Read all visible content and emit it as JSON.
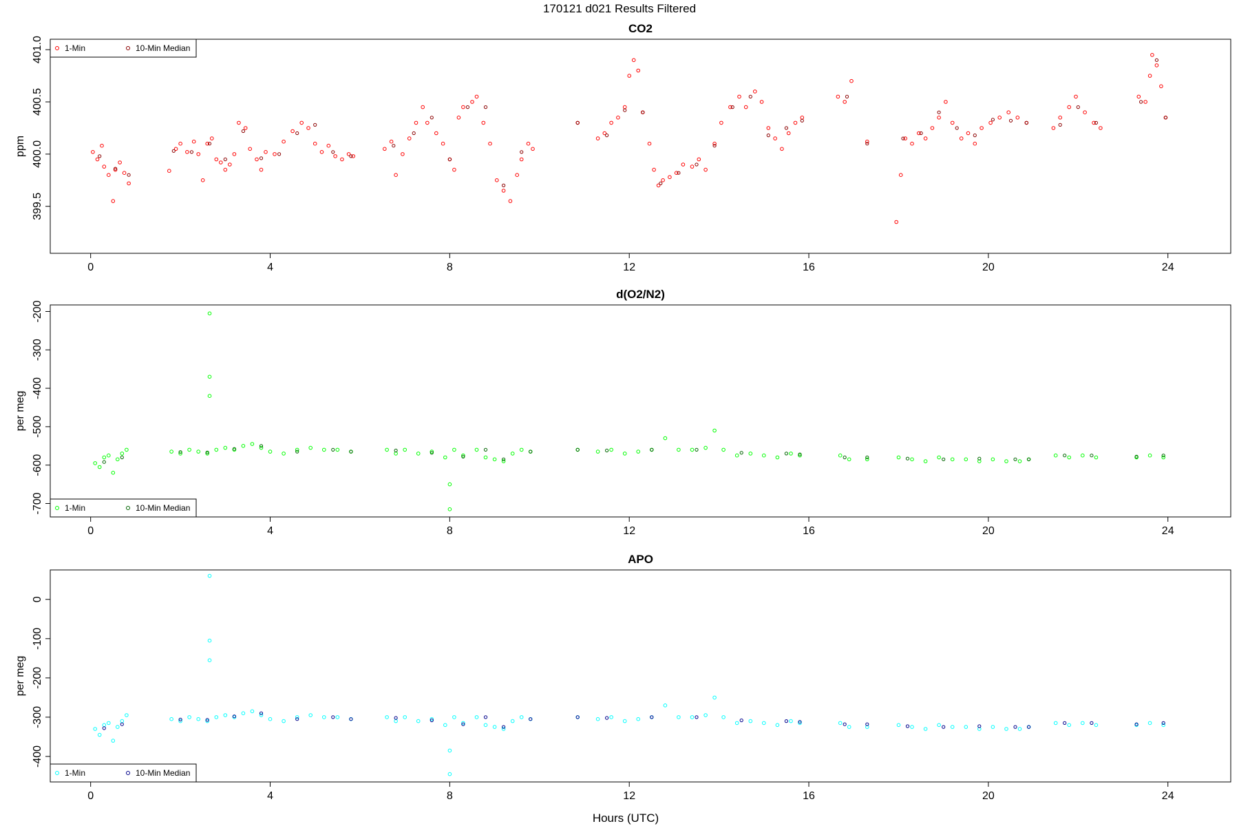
{
  "figure": {
    "title": "170121   d021   Results Filtered",
    "xlabel": "Hours (UTC)"
  },
  "chart_data": [
    {
      "type": "scatter",
      "title": "CO2",
      "ylabel": "ppm",
      "xlim": [
        -0.9,
        25.4
      ],
      "ylim": [
        399.05,
        401.1
      ],
      "xticks": [
        0,
        4,
        8,
        12,
        16,
        20,
        24
      ],
      "yticks": [
        399.5,
        400.0,
        400.5,
        401.0
      ],
      "ytick_labels": [
        "399.5",
        "400.0",
        "400.5",
        "401.0"
      ],
      "legend": {
        "placement": "top-left",
        "entries": [
          "1-Min",
          "10-Min Median"
        ]
      },
      "colors": {
        "one_min": "#ff0000",
        "median": "#8b0000"
      },
      "series": [
        {
          "name": "1-Min",
          "x": [
            0.05,
            0.15,
            0.25,
            0.3,
            0.4,
            0.5,
            0.55,
            0.65,
            0.75,
            0.85,
            1.75,
            1.9,
            2.0,
            2.15,
            2.3,
            2.4,
            2.5,
            2.6,
            2.7,
            2.8,
            2.9,
            3.0,
            3.1,
            3.2,
            3.3,
            3.45,
            3.55,
            3.7,
            3.8,
            3.9,
            4.1,
            4.3,
            4.5,
            4.7,
            4.85,
            5.0,
            5.15,
            5.3,
            5.45,
            5.6,
            5.75,
            5.85,
            6.55,
            6.7,
            6.8,
            6.95,
            7.1,
            7.25,
            7.4,
            7.5,
            7.7,
            7.85,
            8.0,
            8.1,
            8.2,
            8.3,
            8.5,
            8.6,
            8.75,
            8.9,
            9.05,
            9.2,
            9.35,
            9.5,
            9.6,
            9.75,
            9.85,
            10.85,
            11.3,
            11.45,
            11.6,
            11.75,
            11.9,
            12.0,
            12.1,
            12.2,
            12.3,
            12.45,
            12.55,
            12.65,
            12.75,
            12.9,
            13.05,
            13.2,
            13.4,
            13.55,
            13.7,
            13.9,
            14.05,
            14.25,
            14.45,
            14.6,
            14.8,
            14.95,
            15.1,
            15.25,
            15.4,
            15.55,
            15.7,
            15.85,
            16.65,
            16.8,
            16.95,
            17.3,
            17.95,
            18.05,
            18.15,
            18.3,
            18.45,
            18.6,
            18.75,
            18.9,
            19.05,
            19.2,
            19.4,
            19.55,
            19.7,
            19.85,
            20.05,
            20.25,
            20.45,
            20.65,
            20.85,
            21.45,
            21.6,
            21.8,
            21.95,
            22.15,
            22.35,
            22.5,
            23.35,
            23.5,
            23.6,
            23.65,
            23.75,
            23.85,
            23.95
          ],
          "y": [
            400.02,
            399.95,
            400.08,
            399.88,
            399.8,
            399.55,
            399.85,
            399.92,
            399.82,
            399.72,
            399.84,
            400.05,
            400.1,
            400.02,
            400.12,
            400.0,
            399.75,
            400.1,
            400.15,
            399.95,
            399.92,
            399.85,
            399.9,
            400.0,
            400.3,
            400.25,
            400.05,
            399.95,
            399.85,
            400.02,
            400.0,
            400.12,
            400.22,
            400.3,
            400.25,
            400.1,
            400.02,
            400.08,
            399.98,
            399.95,
            400.0,
            399.98,
            400.05,
            400.12,
            399.8,
            400.0,
            400.15,
            400.3,
            400.45,
            400.3,
            400.2,
            400.1,
            399.95,
            399.85,
            400.35,
            400.45,
            400.5,
            400.55,
            400.3,
            400.1,
            399.75,
            399.65,
            399.55,
            399.8,
            399.95,
            400.1,
            400.05,
            400.3,
            400.15,
            400.2,
            400.3,
            400.35,
            400.45,
            400.75,
            400.9,
            400.8,
            400.4,
            400.1,
            399.85,
            399.7,
            399.75,
            399.78,
            399.82,
            399.9,
            399.88,
            399.95,
            399.85,
            400.1,
            400.3,
            400.45,
            400.55,
            400.45,
            400.6,
            400.5,
            400.25,
            400.15,
            400.05,
            400.2,
            400.3,
            400.35,
            400.55,
            400.5,
            400.7,
            400.12,
            399.35,
            399.8,
            400.15,
            400.1,
            400.2,
            400.15,
            400.25,
            400.35,
            400.5,
            400.3,
            400.15,
            400.2,
            400.1,
            400.25,
            400.3,
            400.35,
            400.4,
            400.35,
            400.3,
            400.25,
            400.35,
            400.45,
            400.55,
            400.4,
            400.3,
            400.25,
            400.55,
            400.5,
            400.75,
            400.95,
            400.85,
            400.65,
            400.35
          ],
          "symbol": "open-circle"
        },
        {
          "name": "10-Min Median",
          "x": [
            0.2,
            0.55,
            0.85,
            1.85,
            2.25,
            2.65,
            3.0,
            3.4,
            3.8,
            4.2,
            4.6,
            5.0,
            5.4,
            5.8,
            6.75,
            7.2,
            7.6,
            8.0,
            8.4,
            8.8,
            9.2,
            9.6,
            10.85,
            11.5,
            11.9,
            12.3,
            12.7,
            13.1,
            13.5,
            13.9,
            14.3,
            14.7,
            15.1,
            15.5,
            15.85,
            16.85,
            17.3,
            18.1,
            18.5,
            18.9,
            19.3,
            19.7,
            20.1,
            20.5,
            20.85,
            21.6,
            22.0,
            22.4,
            23.4,
            23.75,
            23.95
          ],
          "y": [
            399.98,
            399.86,
            399.8,
            400.03,
            400.02,
            400.1,
            399.95,
            400.22,
            399.96,
            400.0,
            400.2,
            400.28,
            400.02,
            399.98,
            400.08,
            400.2,
            400.35,
            399.95,
            400.45,
            400.45,
            399.7,
            400.02,
            400.3,
            400.18,
            400.42,
            400.4,
            399.72,
            399.82,
            399.9,
            400.08,
            400.45,
            400.55,
            400.18,
            400.25,
            400.32,
            400.55,
            400.1,
            400.15,
            400.2,
            400.4,
            400.25,
            400.18,
            400.33,
            400.32,
            400.3,
            400.28,
            400.45,
            400.3,
            400.5,
            400.9,
            400.35
          ],
          "symbol": "open-circle"
        }
      ]
    },
    {
      "type": "scatter",
      "title": "d(O2/N2)",
      "ylabel": "per meg",
      "xlim": [
        -0.9,
        25.4
      ],
      "ylim": [
        -735,
        -183
      ],
      "xticks": [
        0,
        4,
        8,
        12,
        16,
        20,
        24
      ],
      "yticks": [
        -700,
        -600,
        -500,
        -400,
        -300,
        -200
      ],
      "ytick_labels": [
        "-700",
        "-600",
        "-500",
        "-400",
        "-300",
        "-200"
      ],
      "legend": {
        "placement": "bottom-left",
        "entries": [
          "1-Min",
          "10-Min Median"
        ]
      },
      "colors": {
        "one_min": "#00ff00",
        "median": "#006400"
      },
      "series": [
        {
          "name": "1-Min",
          "x": [
            0.1,
            0.2,
            0.3,
            0.4,
            0.5,
            0.6,
            0.7,
            0.8,
            1.8,
            2.0,
            2.2,
            2.4,
            2.6,
            2.65,
            2.65,
            2.65,
            2.8,
            3.0,
            3.2,
            3.4,
            3.6,
            3.8,
            4.0,
            4.3,
            4.6,
            4.9,
            5.2,
            5.5,
            5.8,
            6.6,
            6.8,
            7.0,
            7.3,
            7.6,
            7.9,
            8.0,
            8.0,
            8.1,
            8.3,
            8.6,
            8.8,
            9.0,
            9.2,
            9.4,
            9.6,
            9.8,
            10.85,
            11.3,
            11.6,
            11.9,
            12.2,
            12.5,
            12.8,
            13.1,
            13.4,
            13.7,
            13.9,
            14.1,
            14.4,
            14.7,
            15.0,
            15.3,
            15.6,
            15.8,
            16.7,
            16.9,
            17.3,
            18.0,
            18.3,
            18.6,
            18.9,
            19.2,
            19.5,
            19.8,
            20.1,
            20.4,
            20.7,
            20.9,
            21.5,
            21.8,
            22.1,
            22.4,
            23.3,
            23.6,
            23.9
          ],
          "y": [
            -595,
            -605,
            -580,
            -575,
            -620,
            -585,
            -570,
            -560,
            -565,
            -570,
            -560,
            -565,
            -570,
            -205,
            -370,
            -420,
            -560,
            -555,
            -560,
            -550,
            -545,
            -555,
            -565,
            -570,
            -560,
            -555,
            -560,
            -560,
            -565,
            -560,
            -570,
            -560,
            -570,
            -565,
            -580,
            -650,
            -715,
            -560,
            -575,
            -560,
            -580,
            -585,
            -590,
            -570,
            -560,
            -565,
            -560,
            -565,
            -560,
            -570,
            -565,
            -560,
            -530,
            -560,
            -560,
            -555,
            -510,
            -560,
            -575,
            -570,
            -575,
            -580,
            -570,
            -575,
            -575,
            -585,
            -585,
            -580,
            -585,
            -590,
            -580,
            -585,
            -585,
            -590,
            -585,
            -590,
            -590,
            -585,
            -575,
            -580,
            -575,
            -580,
            -580,
            -575,
            -580
          ],
          "symbol": "open-circle"
        },
        {
          "name": "10-Min Median",
          "x": [
            0.3,
            0.7,
            2.0,
            2.6,
            3.2,
            3.8,
            4.6,
            5.4,
            5.8,
            6.8,
            7.6,
            8.3,
            8.8,
            9.2,
            9.8,
            10.85,
            11.5,
            12.5,
            13.5,
            14.5,
            15.5,
            15.8,
            16.8,
            17.3,
            18.2,
            19.0,
            19.8,
            20.6,
            20.9,
            21.7,
            22.3,
            23.3,
            23.9
          ],
          "y": [
            -592,
            -580,
            -566,
            -567,
            -558,
            -550,
            -565,
            -560,
            -565,
            -562,
            -568,
            -578,
            -560,
            -585,
            -565,
            -560,
            -562,
            -560,
            -560,
            -568,
            -570,
            -572,
            -580,
            -580,
            -583,
            -585,
            -583,
            -585,
            -585,
            -575,
            -575,
            -578,
            -575
          ],
          "symbol": "open-circle"
        }
      ]
    },
    {
      "type": "scatter",
      "title": "APO",
      "ylabel": "per meg",
      "xlim": [
        -0.9,
        25.4
      ],
      "ylim": [
        -465,
        75
      ],
      "xticks": [
        0,
        4,
        8,
        12,
        16,
        20,
        24
      ],
      "yticks": [
        -400,
        -300,
        -200,
        -100,
        0
      ],
      "ytick_labels": [
        "-400",
        "-300",
        "-200",
        "-100",
        "0"
      ],
      "legend": {
        "placement": "bottom-left",
        "entries": [
          "1-Min",
          "10-Min Median"
        ]
      },
      "colors": {
        "one_min": "#00ffff",
        "median": "#00008b"
      },
      "series": [
        {
          "name": "1-Min",
          "x": [
            0.1,
            0.2,
            0.3,
            0.4,
            0.5,
            0.6,
            0.7,
            0.8,
            1.8,
            2.0,
            2.2,
            2.4,
            2.6,
            2.65,
            2.65,
            2.65,
            2.8,
            3.0,
            3.2,
            3.4,
            3.6,
            3.8,
            4.0,
            4.3,
            4.6,
            4.9,
            5.2,
            5.5,
            5.8,
            6.6,
            6.8,
            7.0,
            7.3,
            7.6,
            7.9,
            8.0,
            8.0,
            8.1,
            8.3,
            8.6,
            8.8,
            9.0,
            9.2,
            9.4,
            9.6,
            9.8,
            10.85,
            11.3,
            11.6,
            11.9,
            12.2,
            12.5,
            12.8,
            13.1,
            13.4,
            13.7,
            13.9,
            14.1,
            14.4,
            14.7,
            15.0,
            15.3,
            15.6,
            15.8,
            16.7,
            16.9,
            17.3,
            18.0,
            18.3,
            18.6,
            18.9,
            19.2,
            19.5,
            19.8,
            20.1,
            20.4,
            20.7,
            20.9,
            21.5,
            21.8,
            22.1,
            22.4,
            23.3,
            23.6,
            23.9
          ],
          "y": [
            -330,
            -345,
            -320,
            -315,
            -360,
            -325,
            -310,
            -295,
            -305,
            -310,
            -300,
            -305,
            -310,
            60,
            -105,
            -155,
            -300,
            -295,
            -300,
            -290,
            -285,
            -295,
            -305,
            -310,
            -300,
            -295,
            -300,
            -300,
            -305,
            -300,
            -310,
            -300,
            -310,
            -305,
            -320,
            -385,
            -445,
            -300,
            -315,
            -300,
            -320,
            -325,
            -330,
            -310,
            -300,
            -305,
            -300,
            -305,
            -300,
            -310,
            -305,
            -300,
            -270,
            -300,
            -300,
            -295,
            -250,
            -300,
            -315,
            -310,
            -315,
            -320,
            -310,
            -315,
            -315,
            -325,
            -325,
            -320,
            -325,
            -330,
            -320,
            -325,
            -325,
            -330,
            -325,
            -330,
            -330,
            -325,
            -315,
            -320,
            -315,
            -320,
            -320,
            -315,
            -320
          ],
          "symbol": "open-circle"
        },
        {
          "name": "10-Min Median",
          "x": [
            0.3,
            0.7,
            2.0,
            2.6,
            3.2,
            3.8,
            4.6,
            5.4,
            5.8,
            6.8,
            7.6,
            8.3,
            8.8,
            9.2,
            9.8,
            10.85,
            11.5,
            12.5,
            13.5,
            14.5,
            15.5,
            15.8,
            16.8,
            17.3,
            18.2,
            19.0,
            19.8,
            20.6,
            20.9,
            21.7,
            22.3,
            23.3,
            23.9
          ],
          "y": [
            -328,
            -318,
            -306,
            -307,
            -298,
            -290,
            -305,
            -300,
            -305,
            -302,
            -308,
            -318,
            -300,
            -325,
            -305,
            -300,
            -302,
            -300,
            -300,
            -308,
            -310,
            -312,
            -318,
            -318,
            -323,
            -325,
            -323,
            -325,
            -325,
            -315,
            -315,
            -318,
            -315
          ],
          "symbol": "open-circle"
        }
      ]
    }
  ]
}
